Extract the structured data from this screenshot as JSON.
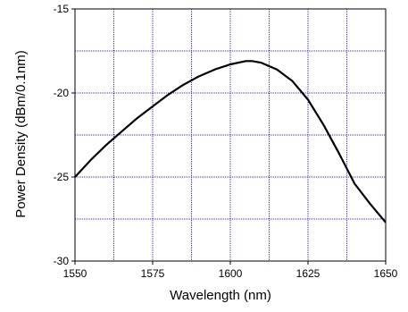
{
  "chart_data": {
    "type": "line",
    "title": "",
    "xlabel": "Wavelength (nm)",
    "ylabel": "Power Density (dBm/0.1nm)",
    "xlim": [
      1550,
      1650
    ],
    "ylim": [
      -30,
      -15
    ],
    "x_ticks": [
      1550,
      1575,
      1600,
      1625,
      1650
    ],
    "x_tick_labels": [
      "1550",
      "1575",
      "1600",
      "1625",
      "1650"
    ],
    "y_ticks": [
      -30,
      -25,
      -20,
      -15
    ],
    "y_tick_labels": [
      "-30",
      "-25",
      "-20",
      "-15"
    ],
    "x_gridlines": [
      1562.5,
      1575,
      1587.5,
      1600,
      1612.5,
      1625,
      1637.5
    ],
    "y_gridlines": [
      -27.5,
      -25,
      -22.5,
      -20,
      -17.5
    ],
    "grid": true,
    "grid_color": "#3333cc",
    "line_color": "#000000",
    "series": [
      {
        "x": [
          1550,
          1555,
          1560,
          1565,
          1570,
          1575,
          1580,
          1585,
          1590,
          1595,
          1600,
          1605,
          1607,
          1610,
          1615,
          1620,
          1625,
          1630,
          1635,
          1640,
          1645,
          1650
        ],
        "values": [
          -25.0,
          -24.0,
          -23.1,
          -22.3,
          -21.5,
          -20.8,
          -20.1,
          -19.5,
          -19.0,
          -18.6,
          -18.3,
          -18.1,
          -18.1,
          -18.2,
          -18.6,
          -19.3,
          -20.4,
          -21.9,
          -23.6,
          -25.4,
          -26.6,
          -27.7
        ]
      }
    ]
  }
}
